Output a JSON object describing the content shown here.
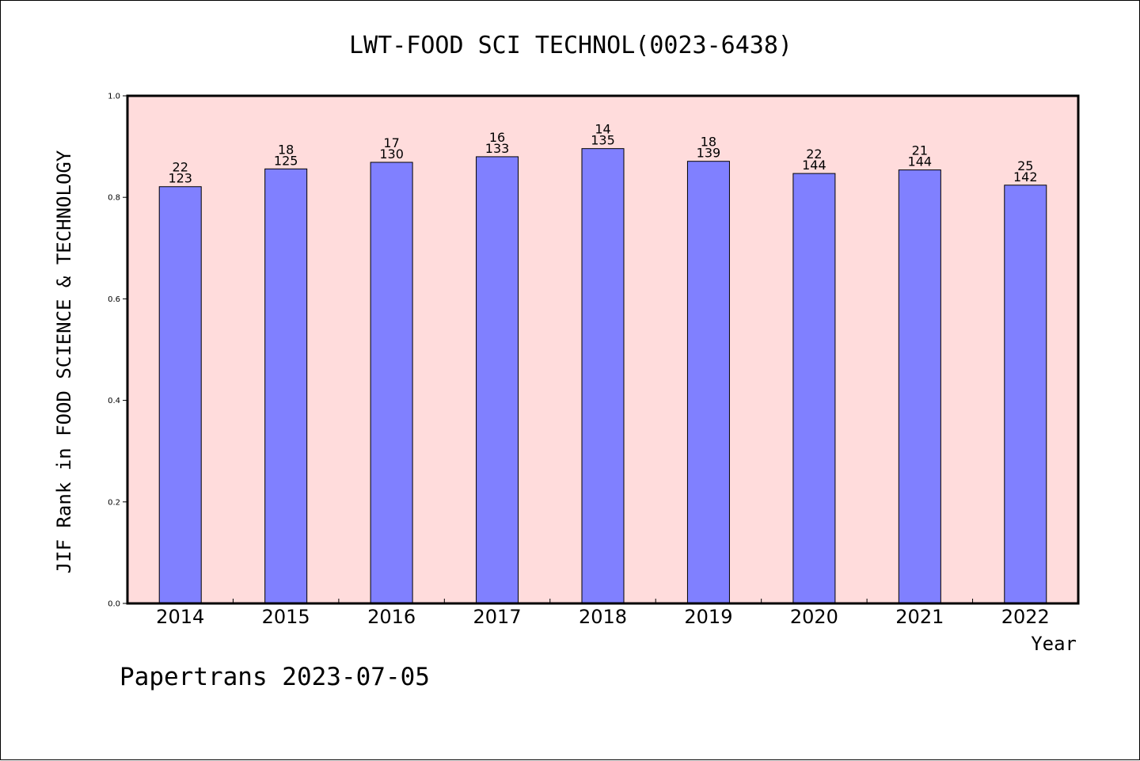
{
  "chart_data": {
    "type": "bar",
    "title": "LWT-FOOD SCI TECHNOL(0023-6438)",
    "xlabel": "Year",
    "ylabel": "JIF Rank in FOOD SCIENCE & TECHNOLOGY",
    "ylim": [
      0,
      1.0
    ],
    "yticks": [
      "0.0",
      "0.2",
      "0.4",
      "0.6",
      "0.8",
      "1.0"
    ],
    "grid": false,
    "categories": [
      "2014",
      "2015",
      "2016",
      "2017",
      "2018",
      "2019",
      "2020",
      "2021",
      "2022"
    ],
    "values": [
      0.821,
      0.856,
      0.869,
      0.88,
      0.896,
      0.871,
      0.847,
      0.854,
      0.824
    ],
    "labels_top": [
      "22",
      "18",
      "17",
      "16",
      "14",
      "18",
      "22",
      "21",
      "25"
    ],
    "labels_bottom": [
      "123",
      "125",
      "130",
      "133",
      "135",
      "139",
      "144",
      "144",
      "142"
    ],
    "colors": {
      "bar": "#8080ff",
      "plot_background": "#ffdcdc",
      "edge": "#000000"
    }
  },
  "footer": "Papertrans 2023-07-05"
}
